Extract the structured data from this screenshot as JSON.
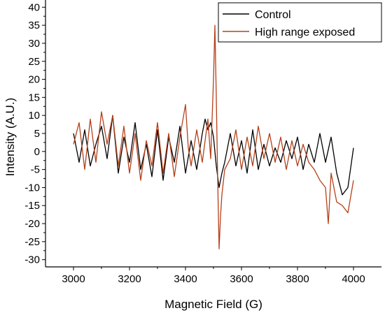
{
  "chart_data": {
    "type": "line",
    "title": "",
    "xlabel": "Magnetic Field (G)",
    "ylabel": "Intensity (A.U.)",
    "xlim": [
      2900,
      4100
    ],
    "ylim": [
      -32,
      42
    ],
    "x_ticks": [
      3000,
      3200,
      3400,
      3600,
      3800,
      4000
    ],
    "y_ticks": [
      -30,
      -25,
      -20,
      -15,
      -10,
      -5,
      0,
      5,
      10,
      15,
      20,
      25,
      30,
      35,
      40
    ],
    "grid": false,
    "legend_position": "top-right",
    "series": [
      {
        "name": "Control",
        "color": "#000000",
        "x": [
          3000,
          3020,
          3040,
          3060,
          3080,
          3100,
          3120,
          3140,
          3160,
          3180,
          3200,
          3220,
          3240,
          3260,
          3280,
          3300,
          3320,
          3340,
          3360,
          3380,
          3400,
          3420,
          3440,
          3460,
          3470,
          3480,
          3490,
          3500,
          3510,
          3520,
          3530,
          3540,
          3560,
          3580,
          3600,
          3620,
          3640,
          3660,
          3680,
          3700,
          3720,
          3740,
          3760,
          3780,
          3800,
          3820,
          3840,
          3860,
          3880,
          3900,
          3920,
          3940,
          3960,
          3980,
          4000
        ],
        "y": [
          5,
          -3,
          6,
          -4,
          2,
          7,
          -2,
          10,
          -6,
          4,
          -3,
          8,
          -5,
          2,
          -7,
          6,
          -8,
          4,
          -3,
          7,
          -6,
          3,
          -5,
          5,
          9,
          6,
          8,
          4,
          -4,
          -10,
          -6,
          -3,
          5,
          -4,
          3,
          -6,
          6,
          -5,
          2,
          -4,
          1,
          -3,
          3,
          -2,
          4,
          -5,
          2,
          -3,
          5,
          -3,
          4,
          -6,
          -12,
          -10,
          1
        ]
      },
      {
        "name": "High range exposed",
        "color": "#b5401a",
        "x": [
          3000,
          3020,
          3040,
          3060,
          3080,
          3100,
          3120,
          3140,
          3160,
          3180,
          3200,
          3220,
          3240,
          3260,
          3280,
          3300,
          3320,
          3340,
          3360,
          3380,
          3400,
          3410,
          3420,
          3440,
          3460,
          3480,
          3490,
          3500,
          3505,
          3510,
          3515,
          3520,
          3525,
          3530,
          3540,
          3560,
          3580,
          3600,
          3620,
          3640,
          3660,
          3680,
          3700,
          3720,
          3740,
          3760,
          3780,
          3800,
          3820,
          3840,
          3860,
          3880,
          3900,
          3910,
          3920,
          3940,
          3960,
          3980,
          4000
        ],
        "y": [
          2,
          8,
          -5,
          9,
          -3,
          11,
          2,
          10,
          -4,
          7,
          -6,
          5,
          -8,
          3,
          -4,
          8,
          -6,
          5,
          -7,
          4,
          13,
          1,
          -4,
          6,
          -3,
          9,
          -2,
          20,
          35,
          15,
          -8,
          -27,
          -18,
          -12,
          -5,
          -2,
          6,
          -5,
          4,
          -4,
          7,
          -2,
          5,
          -3,
          4,
          -5,
          3,
          -4,
          2,
          -3,
          -5,
          -8,
          -10,
          -20,
          -6,
          -14,
          -15,
          -17,
          -8
        ]
      }
    ]
  }
}
